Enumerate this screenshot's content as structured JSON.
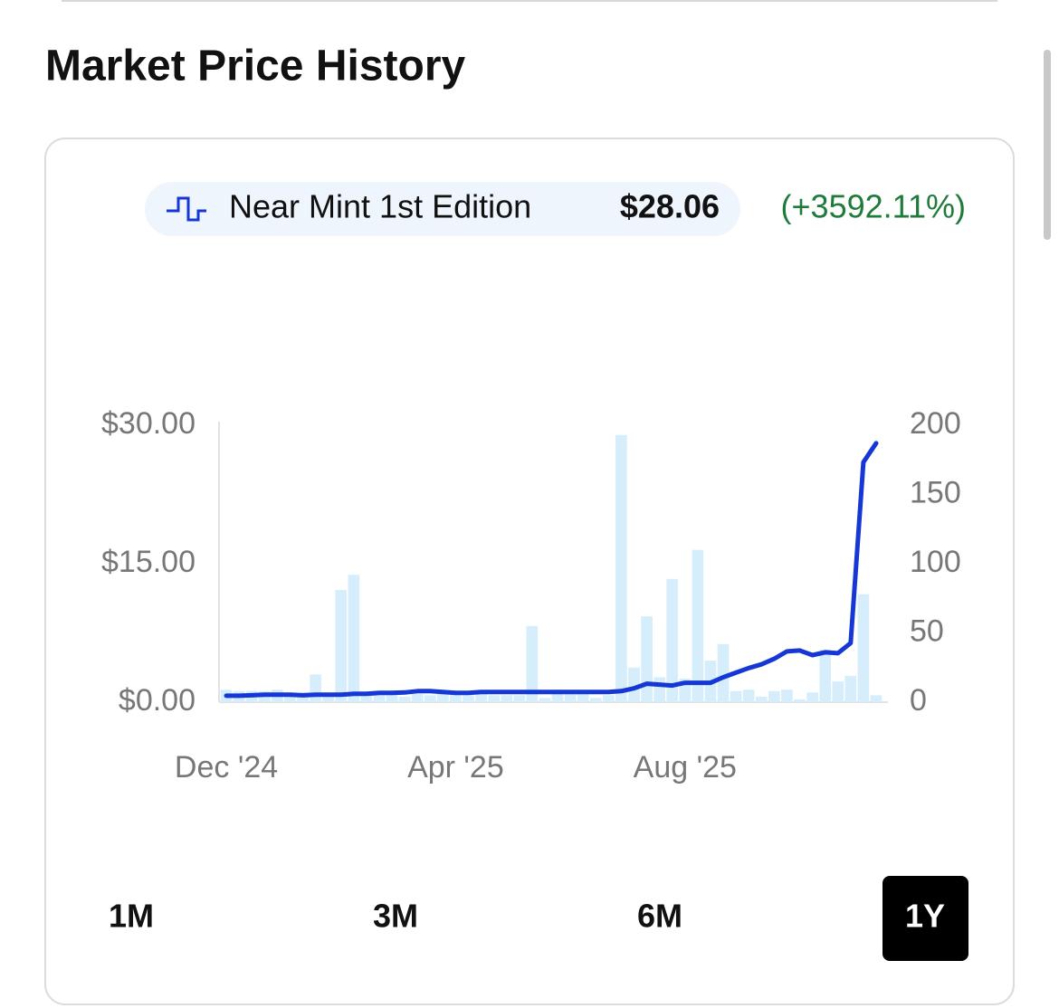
{
  "header": {
    "title": "Market Price History"
  },
  "time_ranges": {
    "options": [
      "1M",
      "3M",
      "6M",
      "1Y"
    ],
    "selected": 3
  },
  "chart_data": {
    "type": "bar-line",
    "current_price": "$28.06",
    "change": "(+3592.11%)",
    "categories": [
      "Dec '24",
      null,
      null,
      null,
      null,
      null,
      null,
      null,
      null,
      null,
      null,
      null,
      null,
      null,
      null,
      null,
      null,
      null,
      "Apr '25",
      null,
      null,
      null,
      null,
      null,
      null,
      null,
      null,
      null,
      null,
      null,
      null,
      null,
      null,
      null,
      null,
      null,
      "Aug '25",
      null,
      null,
      null,
      null,
      null,
      null,
      null,
      null,
      null,
      null,
      null,
      null,
      null,
      null,
      null
    ],
    "series": [
      {
        "color": "#d6edfb",
        "axis": "y2",
        "type": "bar",
        "values": [
          9,
          8,
          8,
          8,
          9,
          7,
          6,
          20,
          6,
          81,
          92,
          6,
          6,
          6,
          4,
          6,
          5,
          6,
          8,
          5,
          6,
          5,
          5,
          5,
          55,
          3,
          6,
          6,
          6,
          3,
          5,
          193,
          25,
          62,
          18,
          89,
          17,
          110,
          30,
          42,
          8,
          9,
          4,
          8,
          9,
          2,
          7,
          38,
          15,
          19,
          78,
          5
        ]
      },
      {
        "name": "Near Mint 1st Edition",
        "color": "#1437d6",
        "type": "line",
        "values": [
          0.7,
          0.7,
          0.75,
          0.8,
          0.8,
          0.8,
          0.75,
          0.8,
          0.8,
          0.8,
          0.9,
          0.9,
          1.0,
          1.0,
          1.05,
          1.2,
          1.2,
          1.1,
          1.0,
          1.0,
          1.1,
          1.1,
          1.1,
          1.1,
          1.1,
          1.1,
          1.1,
          1.1,
          1.1,
          1.1,
          1.1,
          1.2,
          1.5,
          2.0,
          1.9,
          1.8,
          2.1,
          2.1,
          2.1,
          2.7,
          3.2,
          3.7,
          4.1,
          4.7,
          5.5,
          5.6,
          5.1,
          5.4,
          5.3,
          6.4,
          26.0,
          28.06
        ]
      }
    ],
    "ylim": [
      0,
      30
    ],
    "yticks": [
      {
        "value": 0,
        "label": "$0.00"
      },
      {
        "value": 15,
        "label": "$15.00"
      },
      {
        "value": 30,
        "label": "$30.00"
      }
    ],
    "y2lim": [
      0,
      200
    ],
    "y2ticks": [
      0,
      50,
      100,
      150,
      200
    ]
  }
}
